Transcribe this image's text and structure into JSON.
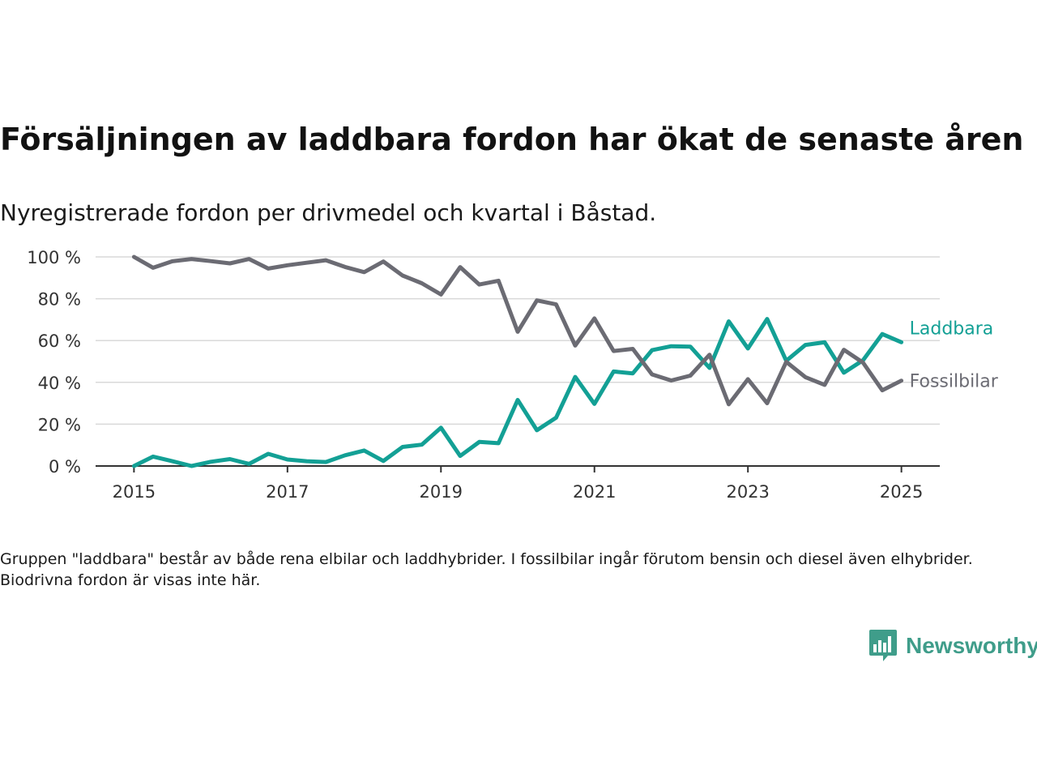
{
  "title": "Försäljningen av laddbara fordon har ökat de senaste åren",
  "subtitle": "Nyregistrerade fordon per drivmedel och kvartal i Båstad.",
  "note": "Gruppen \"laddbara\" består av både rena elbilar och laddhybrider. I fossilbilar ingår förutom bensin och diesel även elhybrider. Biodrivna fordon är visas inte här.",
  "brand": {
    "name": "Newsworthy",
    "icon": "newsworthy-logo-icon"
  },
  "colors": {
    "laddbara": "#13a095",
    "fossilbilar": "#6b6b73",
    "grid": "#d9d9d9",
    "axis": "#333333",
    "brand": "#3f9d8a"
  },
  "chart_data": {
    "type": "line",
    "x_unit": "year (quarterly)",
    "x": [
      2015.0,
      2015.25,
      2015.5,
      2015.75,
      2016.0,
      2016.25,
      2016.5,
      2016.75,
      2017.0,
      2017.25,
      2017.5,
      2017.75,
      2018.0,
      2018.25,
      2018.5,
      2018.75,
      2019.0,
      2019.25,
      2019.5,
      2019.75,
      2020.0,
      2020.25,
      2020.5,
      2020.75,
      2021.0,
      2021.25,
      2021.5,
      2021.75,
      2022.0,
      2022.25,
      2022.5,
      2022.75,
      2023.0,
      2023.25,
      2023.5,
      2023.75,
      2024.0,
      2024.25,
      2024.5,
      2024.75,
      2025.0
    ],
    "series": [
      {
        "name": "Laddbara",
        "color": "#13a095",
        "values": [
          0,
          4.5,
          2.3,
          0,
          2,
          3.3,
          1,
          5.8,
          3.1,
          2.3,
          1.9,
          5.1,
          7.4,
          2.4,
          9.1,
          10.2,
          18.3,
          4.8,
          11.5,
          10.9,
          31.6,
          17.1,
          23.1,
          42.6,
          29.7,
          45.2,
          44.3,
          55.4,
          57.3,
          57.1,
          46.9,
          69.2,
          56.2,
          70.3,
          50.3,
          57.9,
          59.2,
          44.6,
          50.6,
          63.1,
          59.2
        ]
      },
      {
        "name": "Fossilbilar",
        "color": "#6b6b73",
        "values": [
          100,
          94.8,
          97.9,
          99,
          98,
          96.9,
          99,
          94.4,
          96,
          97.2,
          98.4,
          95.2,
          92.7,
          97.8,
          91.1,
          87.4,
          82,
          95.1,
          86.8,
          88.6,
          64.2,
          79.2,
          77.3,
          57.6,
          70.6,
          55,
          56,
          43.8,
          40.9,
          43.2,
          53.2,
          29.5,
          41.5,
          30,
          49.8,
          42.5,
          38.8,
          55.6,
          49.4,
          36.2,
          40.8
        ]
      }
    ],
    "x_ticks": [
      "2015",
      "2017",
      "2019",
      "2021",
      "2023",
      "2025"
    ],
    "y_ticks": [
      "0 %",
      "20 %",
      "40 %",
      "60 %",
      "80 %",
      "100 %"
    ],
    "ylim": [
      0,
      100
    ],
    "xlim": [
      2014.5,
      2025.5
    ],
    "grid": "horizontal",
    "legend": "direct labels at line ends"
  }
}
